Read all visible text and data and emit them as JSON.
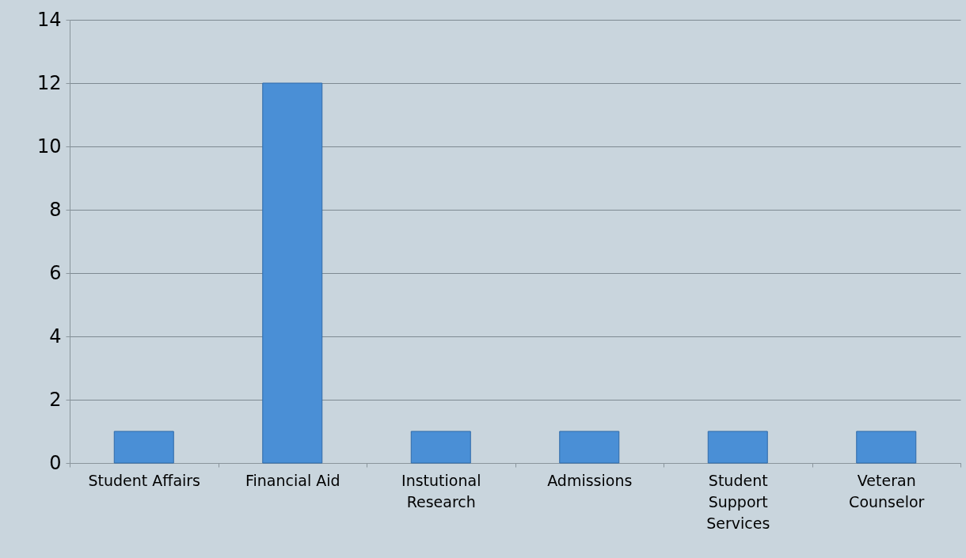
{
  "chart_data": {
    "type": "bar",
    "categories": [
      "Student Affairs",
      "Financial Aid",
      "Instutional Research",
      "Admissions",
      "Student Support Services",
      "Veteran Counselor"
    ],
    "values": [
      1,
      12,
      1,
      1,
      1,
      1
    ],
    "color": "#4a8fd6",
    "ylim": [
      0,
      14
    ],
    "yticks": [
      0,
      2,
      4,
      6,
      8,
      10,
      12,
      14
    ],
    "grid": "y"
  }
}
